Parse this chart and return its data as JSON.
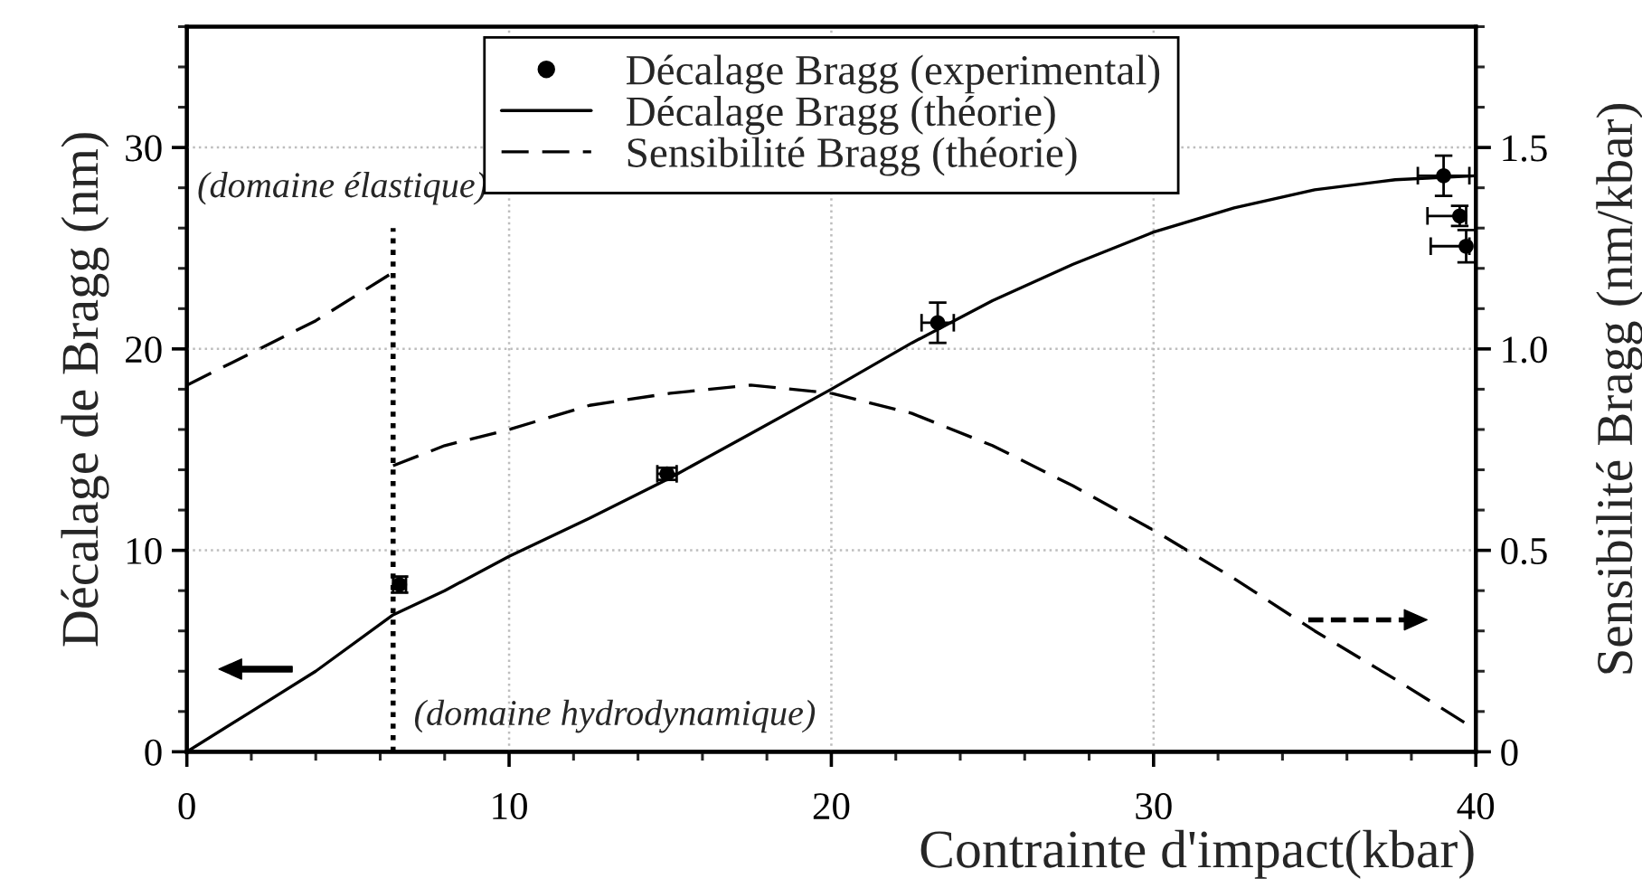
{
  "chart_data": {
    "type": "line",
    "xlabel": "Contrainte d'impact(kbar)",
    "ylabel": "Décalage de Bragg (nm)",
    "y2label": "Sensibilité Bragg (nm/kbar)",
    "annotations": [
      "(domaine élastique)",
      "(domaine hydrodynamique)"
    ],
    "xlim": [
      0,
      40
    ],
    "xticks": [
      0,
      10,
      20,
      30,
      40
    ],
    "ylim": [
      0,
      36
    ],
    "yticks": [
      0,
      10,
      20,
      30
    ],
    "y2lim": [
      0,
      1.8
    ],
    "y2ticks": [
      0,
      0.5,
      {
        "value": 1,
        "label": "1.0"
      },
      1.5
    ],
    "grid": true,
    "legend": "top",
    "series": [
      {
        "name": "Décalage Bragg (experimental)",
        "type": "scatter",
        "marker": "circle",
        "color": "#000000",
        "x": [
          6.6,
          14.9,
          23.3,
          39.0,
          39.5,
          39.7
        ],
        "values": [
          8.3,
          13.8,
          21.3,
          28.6,
          26.6,
          25.1
        ],
        "errors": [
          0.4,
          0.3,
          1.0,
          1.0,
          0.5,
          0.8
        ],
        "xerrors": [
          0.2,
          0.3,
          0.5,
          0.8,
          [
            38.5,
            39.7
          ],
          [
            38.6,
            39.8
          ]
        ]
      },
      {
        "name": "Décalage Bragg (théorie)",
        "line_style": "solid",
        "marker": "none",
        "color": "#000000",
        "x": [
          0,
          2,
          4,
          6.4,
          8,
          10,
          12.5,
          15,
          17.5,
          20,
          22.5,
          25,
          27.5,
          30,
          32.5,
          35,
          37.5,
          40
        ],
        "values": [
          0,
          2.0,
          4.0,
          6.8,
          8.0,
          9.7,
          11.6,
          13.6,
          15.8,
          18.0,
          20.3,
          22.4,
          24.2,
          25.8,
          27.0,
          27.9,
          28.4,
          28.6
        ]
      },
      {
        "name": "Sensibilité Bragg (théorie)",
        "line_style": "dashed",
        "marker": "none",
        "color": "#000000",
        "axis": "y2",
        "x": [
          6.4,
          8,
          10,
          12.5,
          15,
          17.5,
          20,
          22.5,
          25,
          27.5,
          30,
          32.5,
          35,
          37.5,
          39.7
        ],
        "values": [
          0.71,
          0.76,
          0.8,
          0.86,
          0.89,
          0.91,
          0.89,
          0.84,
          0.76,
          0.66,
          0.55,
          0.43,
          0.3,
          0.18,
          0.07
        ]
      },
      {
        "line_style": "dashed",
        "marker": "none",
        "color": "#000000",
        "axis": "y2",
        "x": [
          0,
          2,
          4,
          6.4
        ],
        "values": [
          0.91,
          0.99,
          1.07,
          1.19
        ]
      },
      {
        "line_style": "dotted",
        "marker": "none",
        "color": "#000000",
        "x": [
          6.4,
          6.4
        ],
        "values": [
          0,
          26
        ]
      }
    ]
  }
}
